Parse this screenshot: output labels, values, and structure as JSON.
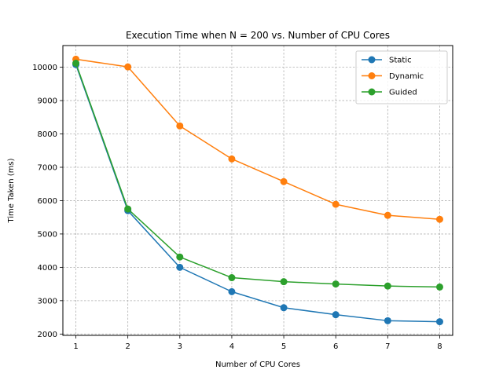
{
  "chart_data": {
    "type": "line",
    "title": "Execution Time when N = 200 vs. Number of CPU Cores",
    "xlabel": "Number of CPU Cores",
    "ylabel": "Time Taken (ms)",
    "x": [
      1,
      2,
      3,
      4,
      5,
      6,
      7,
      8
    ],
    "xlim": [
      0.75,
      8.25
    ],
    "ylim": [
      1960,
      10650
    ],
    "xticks": [
      1,
      2,
      3,
      4,
      5,
      6,
      7,
      8
    ],
    "yticks": [
      2000,
      3000,
      4000,
      5000,
      6000,
      7000,
      8000,
      9000,
      10000
    ],
    "grid": true,
    "legend_position": "top-right",
    "series": [
      {
        "name": "Static",
        "color": "#1f77b4",
        "values": [
          10080,
          5700,
          4000,
          3270,
          2790,
          2580,
          2400,
          2370
        ]
      },
      {
        "name": "Dynamic",
        "color": "#ff7f0e",
        "values": [
          10240,
          10010,
          8240,
          7250,
          6570,
          5890,
          5560,
          5440
        ]
      },
      {
        "name": "Guided",
        "color": "#2ca02c",
        "values": [
          10120,
          5750,
          4310,
          3690,
          3570,
          3500,
          3440,
          3410
        ]
      }
    ]
  }
}
